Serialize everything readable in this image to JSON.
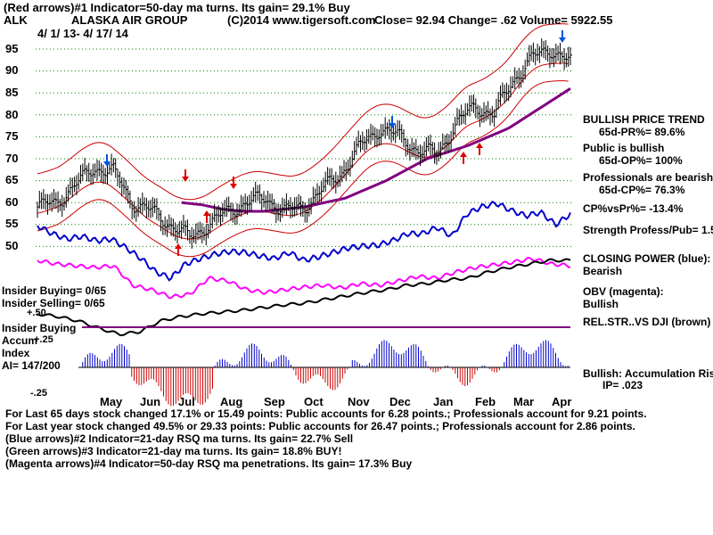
{
  "header": {
    "line1": "(Red arrows)#1 Indicator=50-day ma turns. Its gain= 29.1% Buy",
    "ticker": "ALK",
    "company": "ALASKA AIR GROUP",
    "copyright": "(C)2014 www.tigersoft.com",
    "stats": "Close= 92.94 Change= .62 Volume= 5922.55",
    "date_range": "4/ 1/ 13- 4/ 17/ 14"
  },
  "right_panel": {
    "trend_title": "BULLISH PRICE TREND",
    "pr": "65d-PR%= 89.6%",
    "public_title": "Public is bullish",
    "op": "65d-OP%= 100%",
    "pros_title": "Professionals are bearish",
    "cp": "65d-CP%= 76.3%",
    "cp_vs_pr": "CP%vsPr%= -13.4%",
    "strength": "Strength Profess/Pub= 1.5",
    "closing_power_title": "CLOSING POWER (blue):",
    "closing_power_value": "Bearish",
    "obv_title": "OBV (magenta):",
    "obv_value": "Bullish",
    "rel_str": "REL.STR..VS DJI (brown)",
    "accum_title": "Bullish: Accumulation Risi",
    "ip": "IP= .023"
  },
  "left_panel": {
    "insider_buying": "Insider Buying= 0/65",
    "insider_selling": "Insider Selling= 0/65",
    "insider_buying_label": "Insider Buying",
    "accum_label": "Accum",
    "index_label": "Index",
    "ai": "AI= 147/200",
    "plus50": "+.50",
    "plus25": "+.25",
    "minus25": "-.25"
  },
  "footer": {
    "line1": "For Last 65 days stock changed 17.1% or 15.49 points: Public accounts for 6.28 points.; Professionals account for 9.21 points.",
    "line2": "For Last year stock changed 49.5% or 29.33 points: Public accounts for 26.47 points.; Professionals account for 2.86 points.",
    "line3": "(Blue arrows)#2 Indicator=21-day RSQ ma turns. Its gain= 22.7% Sell",
    "line4": "(Green arrows)#3 Indicator=21-day ma turns. Its gain= 18.8% BUY!",
    "line5": "(Magenta arrows)#4 Indicator=50-day RSQ ma penetrations. Its gain= 17.3% Buy"
  },
  "colors": {
    "price": "#000000",
    "bands": "#cc0000",
    "ma": "#800080",
    "closing_power": "#0000cc",
    "obv": "#ff00ff",
    "accum_pos": "#0000cc",
    "accum_neg": "#cc0000",
    "grid": "#008000",
    "buy_arrow": "#dd0000",
    "sell_arrow": "#0055dd"
  },
  "chart_data": {
    "type": "line",
    "ylim": [
      45,
      98
    ],
    "yticks": [
      55,
      60,
      65,
      70,
      75,
      80,
      85,
      90,
      95
    ],
    "ytick_labels": [
      "55",
      "60",
      "65",
      "70",
      "75",
      "80",
      "85",
      "90",
      "95"
    ],
    "ytick_50_label": "50",
    "xtick_labels": [
      "May",
      "Jun",
      "Jul",
      "Aug",
      "Sep",
      "Oct",
      "Nov",
      "Dec",
      "Jan",
      "Feb",
      "Mar",
      "Apr"
    ],
    "price": [
      59,
      60,
      64,
      68,
      67,
      60,
      58,
      55,
      52,
      55,
      58,
      60,
      61,
      58,
      59,
      63,
      67,
      73,
      77,
      75,
      72,
      71,
      78,
      82,
      80,
      88,
      93,
      95,
      92
    ],
    "ma50": [
      60,
      59.5,
      58.5,
      58,
      58,
      58.5,
      59,
      60,
      61,
      63,
      65,
      67.5,
      70,
      71.5,
      73,
      75,
      77,
      80,
      83,
      86
    ],
    "buy_arrows_x": [
      "Jul",
      "Aug",
      "Jan",
      "Jan"
    ],
    "sell_arrows_x": [
      "May",
      "Aug",
      "Aug",
      "Nov",
      "Apr"
    ]
  }
}
